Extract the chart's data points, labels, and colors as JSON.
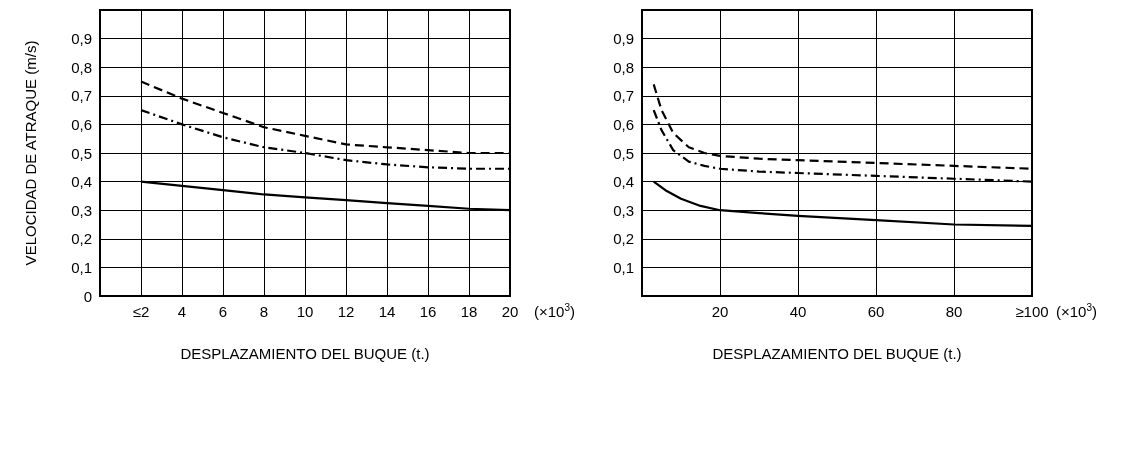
{
  "chart_data": [
    {
      "type": "line",
      "ylabel": "VELOCIDAD DE ATRAQUE (m/s)",
      "xlabel": "DESPLAZAMIENTO DEL BUQUE (t.)",
      "annotations": [
        "(×10$^{3}$)"
      ],
      "xlim": [
        0,
        20
      ],
      "xticks": [
        {
          "value": 2,
          "label": "≤2"
        },
        4,
        6,
        8,
        10,
        12,
        14,
        16,
        18,
        20
      ],
      "ylim": [
        0,
        1
      ],
      "yticks": [
        0,
        {
          "value": 0.1,
          "label": "0,1"
        },
        {
          "value": 0.2,
          "label": "0,2"
        },
        {
          "value": 0.3,
          "label": "0,3"
        },
        {
          "value": 0.4,
          "label": "0,4"
        },
        {
          "value": 0.5,
          "label": "0,5"
        },
        {
          "value": 0.6,
          "label": "0,6"
        },
        {
          "value": 0.7,
          "label": "0,7"
        },
        {
          "value": 0.8,
          "label": "0,8"
        },
        {
          "value": 0.9,
          "label": "0,9"
        }
      ],
      "grid": true,
      "x": [
        2,
        4,
        6,
        8,
        10,
        12,
        14,
        16,
        18,
        20
      ],
      "series": [
        {
          "color": "#000000",
          "line_style": "dashed",
          "values": [
            0.75,
            0.69,
            0.64,
            0.59,
            0.56,
            0.53,
            0.52,
            0.51,
            0.5,
            0.5
          ]
        },
        {
          "color": "#000000",
          "line_style": "dashdot",
          "values": [
            0.65,
            0.6,
            0.555,
            0.52,
            0.5,
            0.475,
            0.46,
            0.45,
            0.445,
            0.445
          ]
        },
        {
          "color": "#000000",
          "line_style": "solid",
          "values": [
            0.4,
            0.385,
            0.37,
            0.355,
            0.345,
            0.335,
            0.325,
            0.315,
            0.305,
            0.3
          ]
        }
      ]
    },
    {
      "type": "line",
      "xlabel": "DESPLAZAMIENTO DEL BUQUE (t.)",
      "annotations": [
        "(×10$^{3}$)"
      ],
      "xlim": [
        0,
        100
      ],
      "xticks": [
        20,
        40,
        60,
        80,
        {
          "value": 100,
          "label": "≥100"
        }
      ],
      "ylim": [
        0,
        1
      ],
      "yticks": [
        {
          "value": 0.1,
          "label": "0,1"
        },
        {
          "value": 0.2,
          "label": "0,2"
        },
        {
          "value": 0.3,
          "label": "0,3"
        },
        {
          "value": 0.4,
          "label": "0,4"
        },
        {
          "value": 0.5,
          "label": "0,5"
        },
        {
          "value": 0.6,
          "label": "0,6"
        },
        {
          "value": 0.7,
          "label": "0,7"
        },
        {
          "value": 0.8,
          "label": "0,8"
        },
        {
          "value": 0.9,
          "label": "0,9"
        }
      ],
      "grid": true,
      "series": [
        {
          "color": "#000000",
          "line_style": "dashed",
          "x": [
            3,
            5,
            8,
            12,
            16,
            20,
            30,
            40,
            60,
            80,
            100
          ],
          "values": [
            0.74,
            0.65,
            0.57,
            0.52,
            0.5,
            0.49,
            0.48,
            0.475,
            0.465,
            0.455,
            0.445
          ]
        },
        {
          "color": "#000000",
          "line_style": "dashdot",
          "x": [
            3,
            5,
            8,
            12,
            16,
            20,
            30,
            40,
            60,
            80,
            100
          ],
          "values": [
            0.65,
            0.58,
            0.51,
            0.47,
            0.455,
            0.445,
            0.435,
            0.43,
            0.42,
            0.41,
            0.4
          ]
        },
        {
          "color": "#000000",
          "line_style": "solid",
          "x": [
            3,
            6,
            10,
            15,
            20,
            30,
            40,
            60,
            80,
            100
          ],
          "values": [
            0.4,
            0.37,
            0.34,
            0.315,
            0.3,
            0.29,
            0.28,
            0.265,
            0.25,
            0.245
          ]
        }
      ]
    }
  ]
}
